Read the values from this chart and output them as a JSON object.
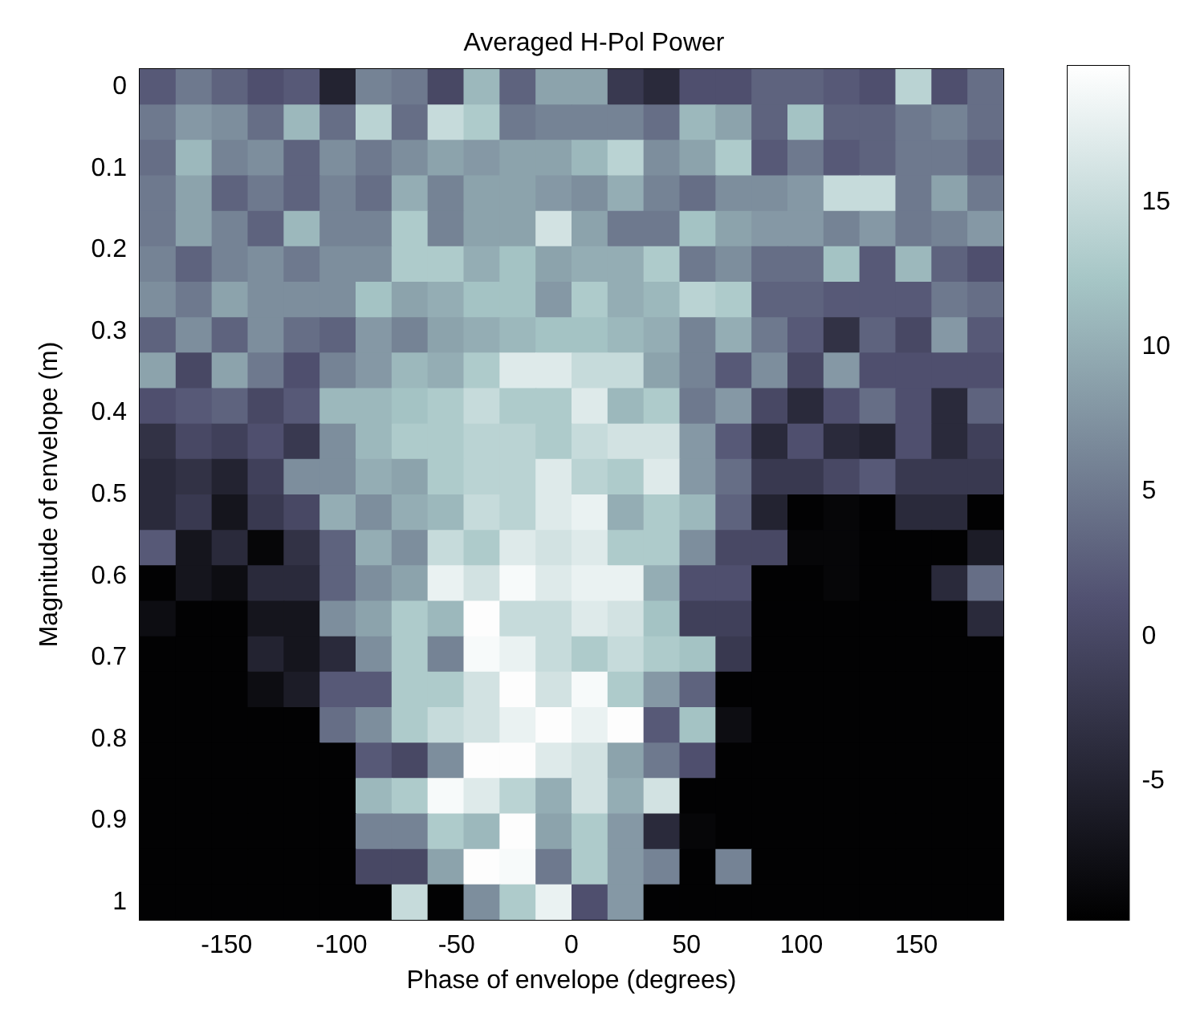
{
  "chart_data": {
    "type": "heatmap",
    "title": "Averaged H-Pol Power",
    "xlabel": "Phase of envelope (degrees)",
    "ylabel": "Magnitude of envelope (m)",
    "xlim": [
      -187.8,
      187.8
    ],
    "xticks": [
      -150,
      -100,
      -50,
      0,
      50,
      100,
      150
    ],
    "ylim": [
      1.022,
      -0.022
    ],
    "yticks": [
      0,
      0.1,
      0.2,
      0.3,
      0.4,
      0.5,
      0.6,
      0.7,
      0.8,
      0.9,
      1
    ],
    "clim": [
      -9.8,
      19.7
    ],
    "cticks": [
      -5,
      0,
      5,
      10,
      15
    ],
    "cells": [
      [
        2,
        5,
        3,
        1,
        2,
        -5,
        6,
        5,
        0,
        11,
        3,
        9,
        9,
        -2,
        -4,
        1,
        1,
        3,
        3,
        2,
        1,
        14,
        1,
        4
      ],
      [
        5,
        8,
        7,
        4,
        11,
        4,
        14,
        4,
        15,
        13,
        5,
        6,
        6,
        6,
        4,
        11,
        9,
        3,
        12,
        3,
        3,
        5,
        6,
        4
      ],
      [
        4,
        11,
        6,
        7,
        3,
        7,
        5,
        7,
        9,
        8,
        9,
        9,
        11,
        14,
        7,
        9,
        13,
        2,
        5,
        2,
        3,
        5,
        5,
        3
      ],
      [
        5,
        9,
        3,
        5,
        3,
        6,
        4,
        10,
        6,
        9,
        9,
        8,
        7,
        10,
        6,
        4,
        7,
        7,
        8,
        15,
        15,
        5,
        9,
        5
      ],
      [
        5,
        9,
        6,
        3,
        11,
        6,
        6,
        13,
        6,
        9,
        9,
        16,
        9,
        5,
        5,
        12,
        9,
        8,
        8,
        6,
        8,
        5,
        6,
        8
      ],
      [
        6,
        3,
        6,
        7,
        5,
        7,
        7,
        13,
        13,
        10,
        12,
        9,
        10,
        10,
        13,
        5,
        7,
        4,
        4,
        12,
        2,
        11,
        3,
        1
      ],
      [
        7,
        5,
        9,
        7,
        7,
        7,
        12,
        9,
        10,
        12,
        12,
        8,
        13,
        10,
        11,
        14,
        13,
        3,
        3,
        2,
        2,
        2,
        5,
        4
      ],
      [
        3,
        7,
        3,
        7,
        4,
        3,
        8,
        6,
        9,
        10,
        11,
        12,
        12,
        11,
        10,
        6,
        10,
        5,
        2,
        -3,
        3,
        0,
        8,
        2
      ],
      [
        9,
        0,
        9,
        5,
        1,
        6,
        8,
        11,
        10,
        13,
        17,
        17,
        15,
        15,
        9,
        6,
        2,
        7,
        0,
        8,
        1,
        1,
        1,
        1
      ],
      [
        1,
        2,
        3,
        0,
        2,
        11,
        11,
        12,
        13,
        15,
        13,
        13,
        17,
        11,
        13,
        5,
        8,
        0,
        -4,
        1,
        4,
        1,
        -4,
        3
      ],
      [
        -3,
        0,
        -1,
        1,
        -2,
        7,
        11,
        13,
        13,
        14,
        14,
        13,
        15,
        16,
        16,
        8,
        2,
        -4,
        1,
        -4,
        -5,
        1,
        -4,
        -1
      ],
      [
        -4,
        -3,
        -5,
        -1,
        7,
        7,
        10,
        9,
        13,
        14,
        14,
        17,
        14,
        13,
        17,
        8,
        4,
        -2,
        -2,
        0,
        2,
        -2,
        -2,
        -2
      ],
      [
        -4,
        -2,
        -7,
        -2,
        0,
        10,
        7,
        10,
        11,
        15,
        14,
        17,
        18,
        10,
        13,
        11,
        3,
        -5,
        -9.5,
        -9,
        -9.5,
        -4,
        -4,
        -9.5
      ],
      [
        2,
        -7,
        -4,
        -9,
        -3,
        3,
        10,
        7,
        15,
        13,
        17,
        16,
        17,
        13,
        13,
        7,
        0,
        0,
        -9,
        -9,
        -9.5,
        -9.5,
        -9.5,
        -6
      ],
      [
        -9.5,
        -7,
        -8,
        -4,
        -4,
        3,
        7,
        9,
        18,
        16,
        19,
        17,
        18,
        18,
        10,
        1,
        1,
        -9.5,
        -9.5,
        -9,
        -9.5,
        -9.5,
        -4,
        4
      ],
      [
        -8,
        -9.5,
        -9.5,
        -7,
        -7,
        7,
        9,
        13,
        11,
        19.5,
        15,
        15,
        17,
        16,
        12,
        -1,
        -1,
        -9.5,
        -9.5,
        -9.5,
        -9.5,
        -9.5,
        -9.5,
        -4
      ],
      [
        -9.5,
        -9.5,
        -9.5,
        -5,
        -7,
        -4,
        7,
        13,
        6,
        19,
        18,
        15,
        13,
        15,
        13,
        12,
        -2,
        -9.5,
        -9.5,
        -9.5,
        -9.5,
        -9.5,
        -9.5,
        -9.5
      ],
      [
        -9.5,
        -9.5,
        -9.5,
        -8,
        -6,
        2,
        2,
        13,
        13,
        16,
        19.5,
        16,
        19,
        13,
        8,
        3,
        -9.5,
        -9.5,
        -9.5,
        -9.5,
        -9.5,
        -9.5,
        -9.5,
        -9.5
      ],
      [
        -9.5,
        -9.5,
        -9.5,
        -9.5,
        -9.5,
        4,
        7,
        13,
        15,
        16,
        18,
        19.5,
        18,
        19.5,
        2,
        12,
        -8,
        -9.5,
        -9.5,
        -9.5,
        -9.5,
        -9.5,
        -9.5,
        -9.5
      ],
      [
        -9.5,
        -9.5,
        -9.5,
        -9.5,
        -9.5,
        -9.5,
        2,
        0,
        7,
        19.5,
        19.5,
        17,
        16,
        9,
        5,
        1,
        -9.5,
        -9.5,
        -9.5,
        -9.5,
        -9.5,
        -9.5,
        -9.5,
        -9.5
      ],
      [
        -9.5,
        -9.5,
        -9.5,
        -9.5,
        -9.5,
        -9.5,
        11,
        13,
        19,
        17,
        14,
        10,
        16,
        10,
        16,
        -9.5,
        -9.5,
        -9.5,
        -9.5,
        -9.5,
        -9.5,
        -9.5,
        -9.5,
        -9.5
      ],
      [
        -9.5,
        -9.5,
        -9.5,
        -9.5,
        -9.5,
        -9.5,
        6,
        6,
        13,
        11,
        19.5,
        9,
        13,
        8,
        -4,
        -9,
        -9.5,
        -9.5,
        -9.5,
        -9.5,
        -9.5,
        -9.5,
        -9.5,
        -9.5
      ],
      [
        -9.5,
        -9.5,
        -9.5,
        -9.5,
        -9.5,
        -9.5,
        0,
        0,
        9,
        19.5,
        19,
        5,
        13,
        8,
        6,
        -9.5,
        6,
        -9.5,
        -9.5,
        -9.5,
        -9.5,
        -9.5,
        -9.5,
        -9.5
      ],
      [
        -9.5,
        -9.5,
        -9.5,
        -9.5,
        -9.5,
        -9.5,
        -9.5,
        15,
        -9.5,
        7,
        13,
        18,
        1,
        8,
        -9.5,
        -9.5,
        -9.5,
        -9.5,
        -9.5,
        -9.5,
        -9.5,
        -9.5,
        -9.5,
        -9.5
      ]
    ]
  }
}
